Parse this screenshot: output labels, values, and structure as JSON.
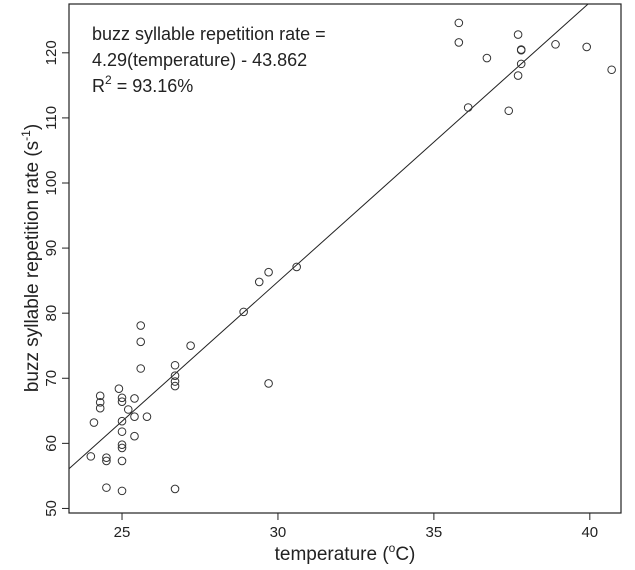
{
  "chart_data": {
    "type": "scatter",
    "xlabel": "temperature (",
    "xlabel_sup": "o",
    "xlabel_tail": "C)",
    "ylabel": "buzz syllable repetition rate (s",
    "ylabel_sup": "-1",
    "ylabel_tail": ")",
    "xlim": [
      23.3,
      41.0
    ],
    "ylim": [
      49.3,
      127.5
    ],
    "xticks": [
      25,
      30,
      35,
      40
    ],
    "yticks": [
      50,
      60,
      70,
      80,
      90,
      100,
      110,
      120
    ],
    "annotation": {
      "line1": "buzz syllable repetition rate =",
      "line2": "4.29(temperature) - 43.862",
      "line3_pre": "R",
      "line3_sup": "2",
      "line3_post": " = 93.16%"
    },
    "regression": {
      "slope": 4.29,
      "intercept": -43.862
    },
    "grid": false,
    "points": [
      {
        "x": 24.0,
        "y": 58.0
      },
      {
        "x": 24.1,
        "y": 63.2
      },
      {
        "x": 24.3,
        "y": 67.3
      },
      {
        "x": 24.3,
        "y": 66.3
      },
      {
        "x": 24.3,
        "y": 65.4
      },
      {
        "x": 24.5,
        "y": 57.8
      },
      {
        "x": 24.5,
        "y": 57.3
      },
      {
        "x": 24.5,
        "y": 53.2
      },
      {
        "x": 24.9,
        "y": 68.4
      },
      {
        "x": 25.0,
        "y": 67.0
      },
      {
        "x": 25.0,
        "y": 66.4
      },
      {
        "x": 25.0,
        "y": 63.4
      },
      {
        "x": 25.0,
        "y": 61.8
      },
      {
        "x": 25.0,
        "y": 59.8
      },
      {
        "x": 25.0,
        "y": 59.3
      },
      {
        "x": 25.0,
        "y": 57.3
      },
      {
        "x": 25.0,
        "y": 52.7
      },
      {
        "x": 25.2,
        "y": 65.2
      },
      {
        "x": 25.4,
        "y": 66.9
      },
      {
        "x": 25.4,
        "y": 64.1
      },
      {
        "x": 25.4,
        "y": 61.1
      },
      {
        "x": 25.6,
        "y": 78.1
      },
      {
        "x": 25.6,
        "y": 75.6
      },
      {
        "x": 25.6,
        "y": 71.5
      },
      {
        "x": 25.8,
        "y": 64.1
      },
      {
        "x": 26.7,
        "y": 72.0
      },
      {
        "x": 26.7,
        "y": 70.4
      },
      {
        "x": 26.7,
        "y": 69.5
      },
      {
        "x": 26.7,
        "y": 68.8
      },
      {
        "x": 26.7,
        "y": 53.0
      },
      {
        "x": 27.2,
        "y": 75.0
      },
      {
        "x": 28.9,
        "y": 80.2
      },
      {
        "x": 29.4,
        "y": 84.8
      },
      {
        "x": 29.7,
        "y": 86.3
      },
      {
        "x": 29.7,
        "y": 69.2
      },
      {
        "x": 30.6,
        "y": 87.1
      },
      {
        "x": 35.8,
        "y": 124.6
      },
      {
        "x": 35.8,
        "y": 121.6
      },
      {
        "x": 36.1,
        "y": 111.6
      },
      {
        "x": 36.7,
        "y": 119.2
      },
      {
        "x": 37.4,
        "y": 111.1
      },
      {
        "x": 37.7,
        "y": 122.8
      },
      {
        "x": 37.7,
        "y": 116.5
      },
      {
        "x": 37.8,
        "y": 120.5
      },
      {
        "x": 37.8,
        "y": 120.4
      },
      {
        "x": 37.8,
        "y": 118.3
      },
      {
        "x": 38.9,
        "y": 121.3
      },
      {
        "x": 39.9,
        "y": 120.9
      },
      {
        "x": 40.7,
        "y": 117.4
      }
    ]
  }
}
